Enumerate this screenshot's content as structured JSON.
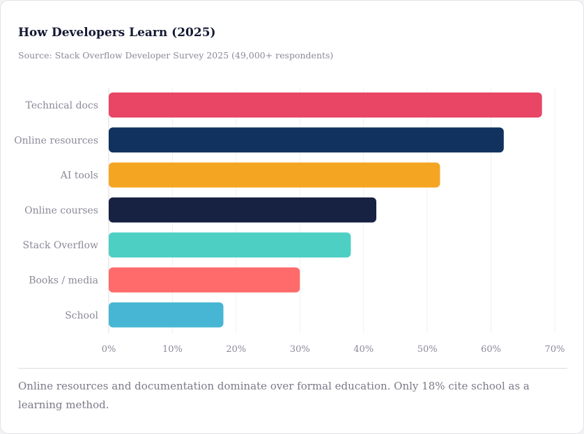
{
  "title": "How Developers Learn (2025)",
  "subtitle": "Source: Stack Overflow Developer Survey 2025 (49,000+ respondents)",
  "footnote": "Online resources and documentation dominate over formal education. Only 18% cite school as a learning method.",
  "chart_data": {
    "type": "bar",
    "orientation": "horizontal",
    "categories": [
      "Technical docs",
      "Online resources",
      "AI tools",
      "Online courses",
      "Stack Overflow",
      "Books / media",
      "School"
    ],
    "values": [
      68,
      62,
      52,
      42,
      38,
      30,
      18
    ],
    "colors": [
      "#e84664",
      "#11325e",
      "#f4a623",
      "#172142",
      "#4ecfc4",
      "#ff6b6b",
      "#47b6d4"
    ],
    "xlim": [
      0,
      70
    ],
    "xticks": [
      "0%",
      "10%",
      "20%",
      "30%",
      "40%",
      "50%",
      "60%",
      "70%"
    ],
    "grid": "vertical",
    "xlabel": "",
    "ylabel": ""
  }
}
